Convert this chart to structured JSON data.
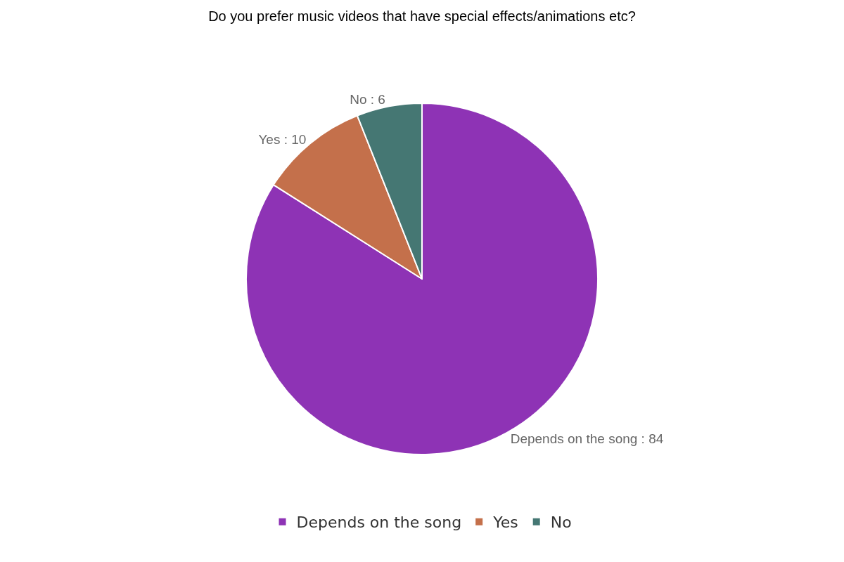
{
  "chart_data": {
    "type": "pie",
    "title": "Do you prefer music videos that have special effects/animations etc?",
    "categories": [
      "Depends on the song",
      "Yes",
      "No"
    ],
    "values": [
      84,
      10,
      6
    ],
    "colors": [
      "#8e33b5",
      "#c4704b",
      "#457773"
    ],
    "value_labels": [
      "Depends on the song : 84",
      "Yes : 10",
      "No : 6"
    ],
    "legend": "bottom"
  }
}
